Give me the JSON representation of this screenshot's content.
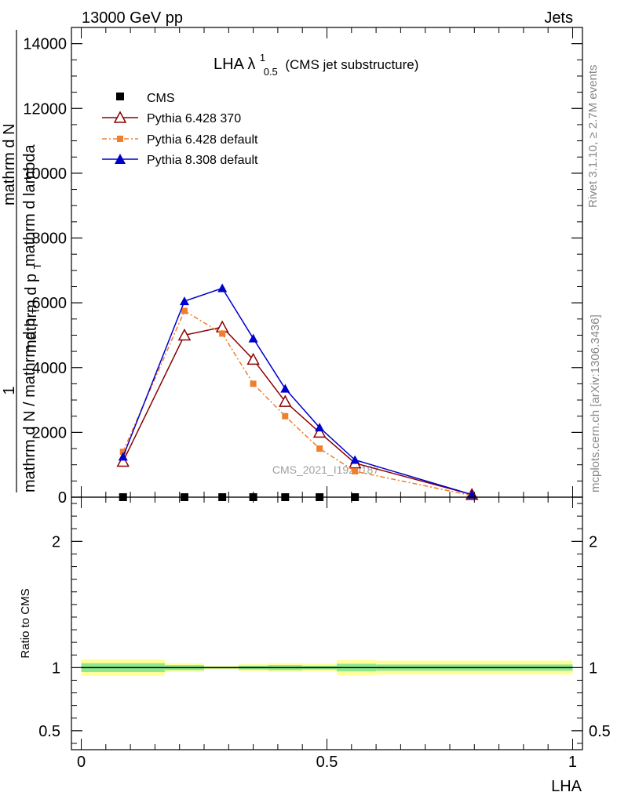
{
  "header": {
    "left": "13000 GeV pp",
    "right": "Jets"
  },
  "side_labels": {
    "rivet": "Rivet 3.1.10, ≥ 2.7M events",
    "mcplots": "mcplots.cern.ch [arXiv:1306.3436]"
  },
  "watermark": "CMS_2021_I1920187",
  "chart_data": [
    {
      "type": "line",
      "title": "LHA λ",
      "title_superscript": "1",
      "title_subscript": "0.5",
      "title_suffix": "(CMS jet substructure)",
      "ylabel_parts": [
        "1",
        "mathrm d N / mathrm d p",
        "T",
        "mathrm d p",
        "T",
        "mathrm d N",
        "mathrm d lambda"
      ],
      "xlim": [
        -0.02,
        1.02
      ],
      "ylim": [
        0,
        14500
      ],
      "yticks": [
        0,
        2000,
        4000,
        6000,
        8000,
        10000,
        12000,
        14000
      ],
      "ytick_labels": [
        "0",
        "2000",
        "4000",
        "6000",
        "8000",
        "10000",
        "12000",
        "14000"
      ],
      "grid": false,
      "legend_position": "top-left",
      "x": [
        0.085,
        0.21,
        0.287,
        0.35,
        0.415,
        0.485,
        0.557,
        0.795
      ],
      "series": [
        {
          "name": "CMS",
          "color": "#000000",
          "marker": "square",
          "x": [
            0.085,
            0.21,
            0.287,
            0.35,
            0.415,
            0.485,
            0.557
          ],
          "values": [
            0,
            0,
            0,
            0,
            0,
            0,
            0
          ]
        },
        {
          "name": "Pythia 6.428 370",
          "color": "#8b0000",
          "marker": "open-triangle",
          "line": "solid",
          "values": [
            1100,
            5000,
            5250,
            4250,
            2950,
            2000,
            1050,
            80
          ]
        },
        {
          "name": "Pythia 6.428 default",
          "color": "#f07e2c",
          "marker": "square",
          "line": "dashdot",
          "values": [
            1400,
            5750,
            5050,
            3500,
            2500,
            1500,
            800,
            50
          ]
        },
        {
          "name": "Pythia 8.308 default",
          "color": "#0000cc",
          "marker": "filled-triangle",
          "line": "solid",
          "values": [
            1250,
            6050,
            6450,
            4900,
            3350,
            2150,
            1150,
            80
          ]
        }
      ]
    },
    {
      "type": "line",
      "title": "",
      "xlabel": "LHA",
      "ylabel": "Ratio to CMS",
      "xlim": [
        -0.02,
        1.02
      ],
      "ylim": [
        0.35,
        2.35
      ],
      "xticks": [
        0,
        0.5,
        1
      ],
      "xtick_labels": [
        "0",
        "0.5",
        "1"
      ],
      "yticks": [
        0.5,
        1,
        2
      ],
      "ytick_labels": [
        "0.5",
        "1",
        "2"
      ],
      "grid": false,
      "reference_value": 1,
      "bins": [
        {
          "x0": 0.0,
          "x1": 0.17,
          "inner": [
            0.965,
            1.035
          ],
          "outer": [
            0.935,
            1.065
          ]
        },
        {
          "x0": 0.17,
          "x1": 0.25,
          "inner": [
            0.98,
            1.02
          ],
          "outer": [
            0.965,
            1.035
          ]
        },
        {
          "x0": 0.25,
          "x1": 0.32,
          "inner": [
            0.993,
            1.007
          ],
          "outer": [
            0.986,
            1.014
          ]
        },
        {
          "x0": 0.32,
          "x1": 0.38,
          "inner": [
            0.985,
            1.015
          ],
          "outer": [
            0.973,
            1.027
          ]
        },
        {
          "x0": 0.38,
          "x1": 0.45,
          "inner": [
            0.98,
            1.02
          ],
          "outer": [
            0.965,
            1.035
          ]
        },
        {
          "x0": 0.45,
          "x1": 0.52,
          "inner": [
            0.985,
            1.015
          ],
          "outer": [
            0.97,
            1.03
          ]
        },
        {
          "x0": 0.52,
          "x1": 0.6,
          "inner": [
            0.97,
            1.03
          ],
          "outer": [
            0.94,
            1.06
          ]
        },
        {
          "x0": 0.6,
          "x1": 1.0,
          "inner": [
            0.975,
            1.025
          ],
          "outer": [
            0.945,
            1.055
          ]
        }
      ],
      "colors": {
        "band_inner": "#8ee88e",
        "band_outer": "#ffff99",
        "reference_line": "#000000"
      }
    }
  ]
}
